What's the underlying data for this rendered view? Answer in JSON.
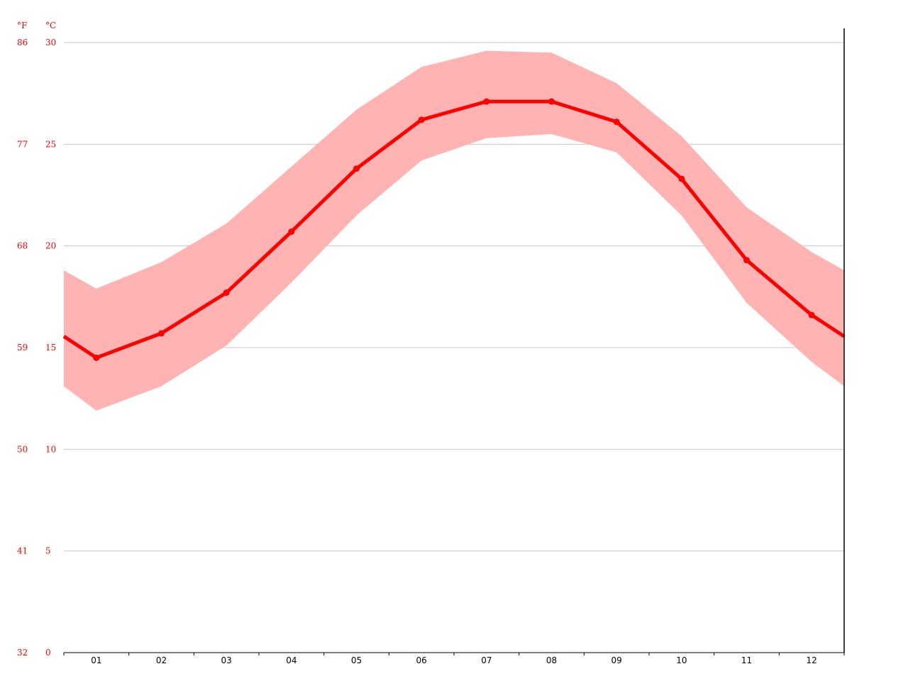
{
  "chart_data": {
    "type": "line",
    "y_unit_left": "°F",
    "y_unit_right": "°C",
    "categories": [
      "01",
      "02",
      "03",
      "04",
      "05",
      "06",
      "07",
      "08",
      "09",
      "10",
      "11",
      "12"
    ],
    "y_ticks_c": [
      0,
      5,
      10,
      15,
      20,
      25,
      30
    ],
    "y_ticks_f": [
      32,
      41,
      50,
      59,
      68,
      77,
      86
    ],
    "ylim": [
      0,
      30.7
    ],
    "grid": true,
    "legend": "none",
    "series": [
      {
        "kind": "line",
        "color": "#ff0000",
        "values": [
          14.5,
          15.7,
          17.7,
          20.7,
          23.8,
          26.2,
          27.1,
          27.1,
          26.1,
          23.3,
          19.3,
          16.6
        ]
      },
      {
        "kind": "band",
        "color": "#ffb3b3",
        "lower": [
          11.9,
          13.1,
          15.1,
          18.2,
          21.5,
          24.2,
          25.3,
          25.5,
          24.6,
          21.5,
          17.2,
          14.3
        ],
        "upper": [
          17.9,
          19.2,
          21.1,
          23.9,
          26.7,
          28.8,
          29.6,
          29.5,
          28.0,
          25.4,
          21.9,
          19.7
        ]
      }
    ]
  }
}
